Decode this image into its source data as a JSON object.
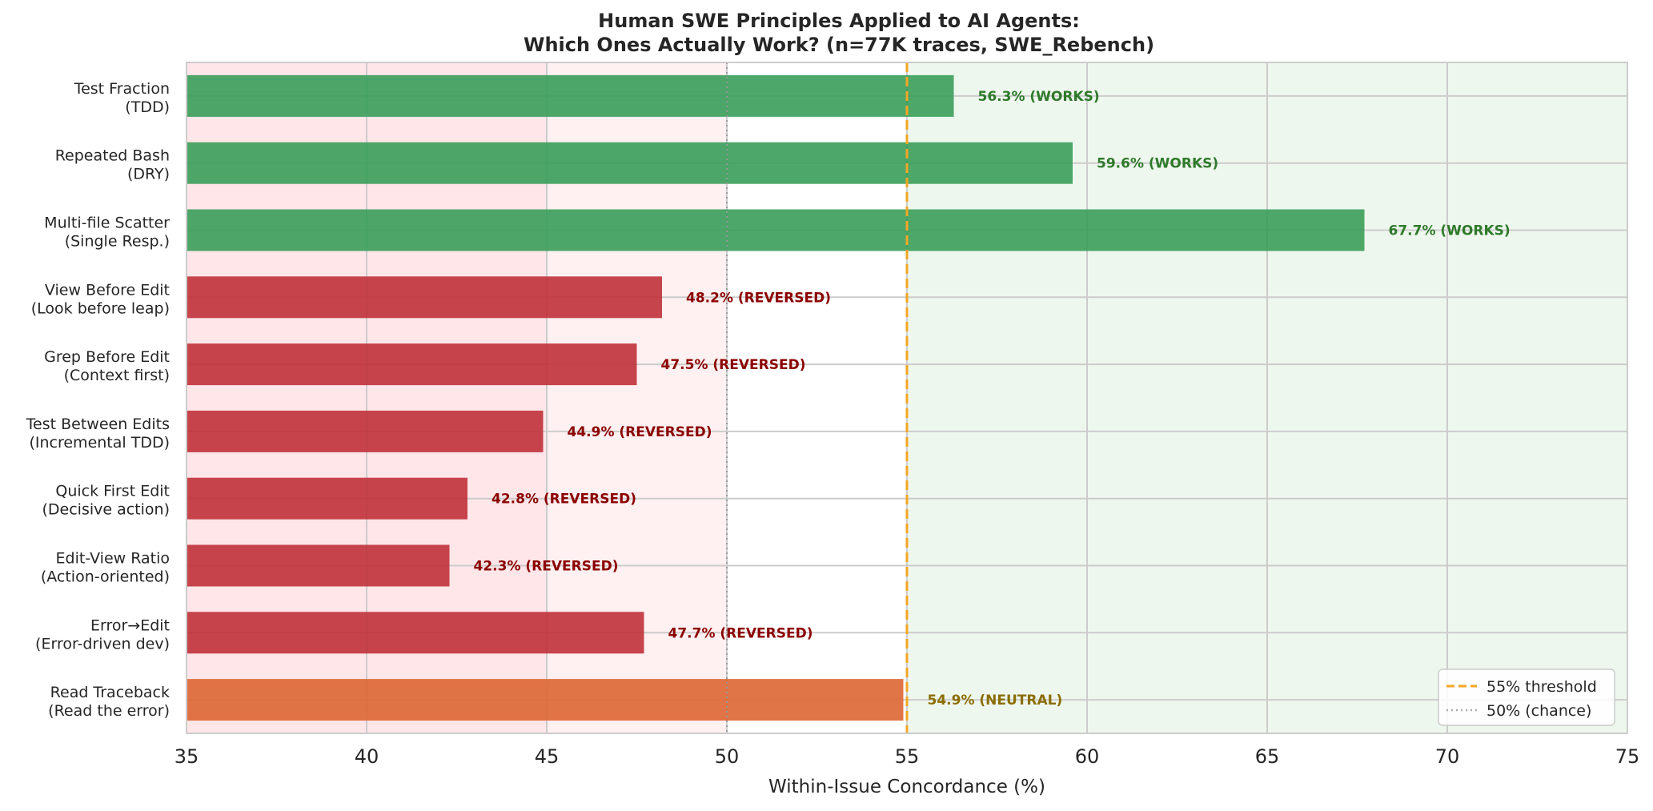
{
  "chart_data": {
    "type": "bar",
    "orientation": "horizontal",
    "title_lines": [
      "Human SWE Principles Applied to AI Agents:",
      "Which Ones Actually Work? (n=77K traces, SWE_Rebench)"
    ],
    "xlabel": "Within-Issue Concordance (%)",
    "xlim": [
      35,
      75
    ],
    "xticks": [
      "35",
      "40",
      "45",
      "50",
      "55",
      "60",
      "65",
      "70",
      "75"
    ],
    "grid": true,
    "threshold": 55,
    "chance": 50,
    "legend_position": "bottom-right",
    "legend": [
      {
        "label": "55% threshold",
        "style": "dashed",
        "color": "#f5a623"
      },
      {
        "label": "50% (chance)",
        "style": "dotted",
        "color": "#aaaaaa"
      }
    ],
    "categories": [
      {
        "line1": "Test Fraction",
        "line2": "(TDD)",
        "value": 56.3,
        "label": "56.3% (WORKS)",
        "status": "works"
      },
      {
        "line1": "Repeated Bash",
        "line2": "(DRY)",
        "value": 59.6,
        "label": "59.6% (WORKS)",
        "status": "works"
      },
      {
        "line1": "Multi-file Scatter",
        "line2": "(Single Resp.)",
        "value": 67.7,
        "label": "67.7% (WORKS)",
        "status": "works"
      },
      {
        "line1": "View Before Edit",
        "line2": "(Look before leap)",
        "value": 48.2,
        "label": "48.2% (REVERSED)",
        "status": "reversed"
      },
      {
        "line1": "Grep Before Edit",
        "line2": "(Context first)",
        "value": 47.5,
        "label": "47.5% (REVERSED)",
        "status": "reversed"
      },
      {
        "line1": "Test Between Edits",
        "line2": "(Incremental TDD)",
        "value": 44.9,
        "label": "44.9% (REVERSED)",
        "status": "reversed"
      },
      {
        "line1": "Quick First Edit",
        "line2": "(Decisive action)",
        "value": 42.8,
        "label": "42.8% (REVERSED)",
        "status": "reversed"
      },
      {
        "line1": "Edit-View Ratio",
        "line2": "(Action-oriented)",
        "value": 42.3,
        "label": "42.3% (REVERSED)",
        "status": "reversed"
      },
      {
        "line1": "Error→Edit",
        "line2": "(Error-driven dev)",
        "value": 47.7,
        "label": "47.7% (REVERSED)",
        "status": "reversed"
      },
      {
        "line1": "Read Traceback",
        "line2": "(Read the error)",
        "value": 54.9,
        "label": "54.9% (NEUTRAL)",
        "status": "neutral"
      }
    ],
    "colors": {
      "works_bar": "#3a9d5a",
      "reversed_bar": "#c0313a",
      "neutral_bar": "#dd6633",
      "works_text": "#2e7a2a",
      "reversed_text": "#8b0000",
      "neutral_text": "#8b6d00",
      "bg_red_strong": "#ffe6e9",
      "bg_red_light": "#fff0f1",
      "bg_green": "#eef7ee"
    }
  }
}
